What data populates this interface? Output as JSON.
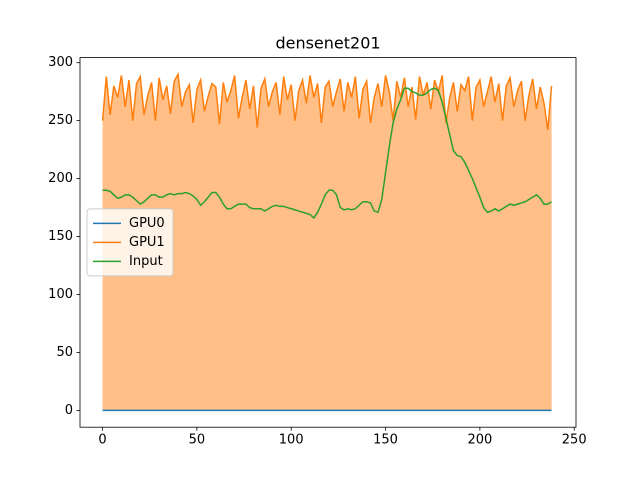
{
  "chart_data": {
    "type": "line",
    "title": "densenet201",
    "x": [
      0,
      2,
      4,
      6,
      8,
      10,
      12,
      14,
      16,
      18,
      20,
      22,
      24,
      26,
      28,
      30,
      32,
      34,
      36,
      38,
      40,
      42,
      44,
      46,
      48,
      50,
      52,
      54,
      56,
      58,
      60,
      62,
      64,
      66,
      68,
      70,
      72,
      74,
      76,
      78,
      80,
      82,
      84,
      86,
      88,
      90,
      92,
      94,
      96,
      98,
      100,
      102,
      104,
      106,
      108,
      110,
      112,
      114,
      116,
      118,
      120,
      122,
      124,
      126,
      128,
      130,
      132,
      134,
      136,
      138,
      140,
      142,
      144,
      146,
      148,
      150,
      152,
      154,
      156,
      158,
      160,
      162,
      164,
      166,
      168,
      170,
      172,
      174,
      176,
      178,
      180,
      182,
      184,
      186,
      188,
      190,
      192,
      194,
      196,
      198,
      200,
      202,
      204,
      206,
      208,
      210,
      212,
      214,
      216,
      218,
      220,
      222,
      224,
      226,
      228,
      230,
      232,
      234,
      236,
      238
    ],
    "series": [
      {
        "name": "GPU0",
        "color": "#1f77b4",
        "fill": false,
        "values": [
          0,
          0,
          0,
          0,
          0,
          0,
          0,
          0,
          0,
          0,
          0,
          0,
          0,
          0,
          0,
          0,
          0,
          0,
          0,
          0,
          0,
          0,
          0,
          0,
          0,
          0,
          0,
          0,
          0,
          0,
          0,
          0,
          0,
          0,
          0,
          0,
          0,
          0,
          0,
          0,
          0,
          0,
          0,
          0,
          0,
          0,
          0,
          0,
          0,
          0,
          0,
          0,
          0,
          0,
          0,
          0,
          0,
          0,
          0,
          0,
          0,
          0,
          0,
          0,
          0,
          0,
          0,
          0,
          0,
          0,
          0,
          0,
          0,
          0,
          0,
          0,
          0,
          0,
          0,
          0,
          0,
          0,
          0,
          0,
          0,
          0,
          0,
          0,
          0,
          0,
          0,
          0,
          0,
          0,
          0,
          0,
          0,
          0,
          0,
          0,
          0,
          0,
          0,
          0,
          0,
          0,
          0,
          0,
          0,
          0,
          0,
          0,
          0,
          0,
          0,
          0,
          0,
          0,
          0,
          0
        ]
      },
      {
        "name": "GPU1",
        "color": "#ff7f0e",
        "fill": true,
        "values": [
          250,
          288,
          255,
          280,
          270,
          289,
          262,
          285,
          250,
          282,
          288,
          255,
          272,
          283,
          250,
          287,
          268,
          280,
          256,
          284,
          290,
          262,
          275,
          281,
          248,
          277,
          285,
          258,
          271,
          282,
          279,
          247,
          283,
          266,
          276,
          289,
          252,
          270,
          285,
          260,
          280,
          244,
          278,
          286,
          262,
          275,
          283,
          255,
          288,
          268,
          281,
          250,
          276,
          285,
          265,
          289,
          270,
          282,
          248,
          279,
          284,
          262,
          275,
          286,
          258,
          283,
          270,
          288,
          252,
          277,
          284,
          248,
          270,
          282,
          262,
          289,
          275,
          250,
          284,
          270,
          287,
          262,
          279,
          251,
          288,
          272,
          283,
          260,
          285,
          275,
          289,
          248,
          270,
          283,
          258,
          281,
          276,
          288,
          250,
          279,
          285,
          262,
          275,
          288,
          266,
          282,
          250,
          280,
          287,
          262,
          276,
          284,
          250,
          272,
          286,
          260,
          279,
          265,
          242,
          280
        ]
      },
      {
        "name": "Input",
        "color": "#2ca02c",
        "fill": false,
        "values": [
          190,
          190,
          189,
          186,
          183,
          184,
          186,
          186,
          184,
          181,
          178,
          180,
          183,
          186,
          186,
          184,
          184,
          186,
          187,
          186,
          187,
          187,
          188,
          187,
          185,
          182,
          177,
          180,
          184,
          188,
          188,
          184,
          178,
          174,
          174,
          176,
          178,
          178,
          178,
          175,
          174,
          174,
          174,
          172,
          174,
          176,
          177,
          176,
          176,
          175,
          174,
          173,
          172,
          171,
          170,
          169,
          166,
          171,
          178,
          186,
          190,
          190,
          186,
          175,
          173,
          174,
          173,
          174,
          177,
          180,
          180,
          179,
          172,
          171,
          182,
          205,
          228,
          248,
          260,
          268,
          278,
          278,
          275,
          274,
          272,
          272,
          274,
          277,
          278,
          276,
          266,
          252,
          238,
          224,
          220,
          219,
          214,
          207,
          200,
          192,
          184,
          175,
          171,
          172,
          174,
          172,
          174,
          176,
          178,
          177,
          178,
          179,
          180,
          182,
          184,
          186,
          183,
          178,
          178,
          180
        ]
      }
    ],
    "xlim": [
      -11.95,
      250.95
    ],
    "xticks": [
      0,
      50,
      100,
      150,
      200,
      250
    ],
    "ylim": [
      -14.5,
      304.4
    ],
    "yticks": [
      0,
      50,
      100,
      150,
      200,
      250,
      300
    ],
    "grid": false,
    "legend": "center left"
  }
}
